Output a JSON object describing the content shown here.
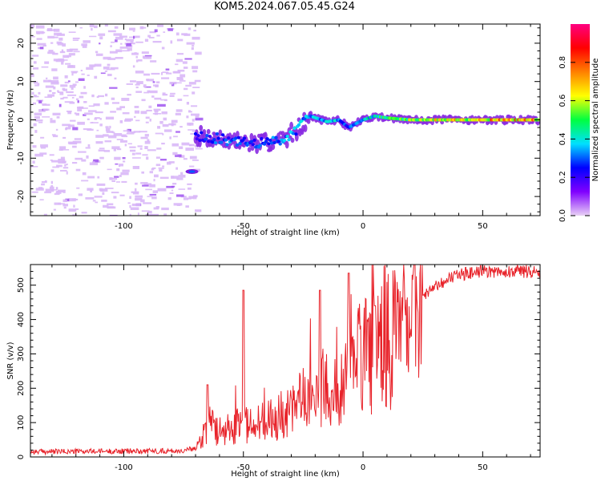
{
  "title": "KOM5.2024.067.05.45.G24",
  "chart_data": [
    {
      "type": "heatmap",
      "name": "spectrogram",
      "xlabel": "Height of straight line (km)",
      "ylabel": "Frequency (Hz)",
      "xlim": [
        -139,
        74
      ],
      "ylim": [
        -25,
        25
      ],
      "xticks": [
        -100,
        -50,
        0,
        50
      ],
      "yticks": [
        -20,
        -10,
        0,
        10,
        20
      ],
      "colorbar": {
        "label": "Normalized spectral amplitude",
        "range": [
          0,
          1
        ],
        "ticks": [
          0.0,
          0.2,
          0.4,
          0.6,
          0.8
        ],
        "colors": [
          "#e9d2f5",
          "#8000ff",
          "#0000ff",
          "#00e0ff",
          "#00ff40",
          "#ffff00",
          "#ff8000",
          "#ff0000",
          "#ff0080"
        ]
      },
      "signal_trace": {
        "x": [
          -70,
          -60,
          -50,
          -40,
          -33,
          -27,
          -22,
          -15,
          -10,
          -6,
          -3,
          0,
          5,
          10,
          20,
          40,
          60,
          74
        ],
        "frequency": [
          -4,
          -5,
          -6,
          -6,
          -5,
          -2,
          1,
          -0.5,
          0,
          -2,
          -1,
          0,
          1,
          0.5,
          0,
          0,
          0,
          0
        ],
        "amplitude": [
          0.25,
          0.3,
          0.3,
          0.3,
          0.35,
          0.35,
          0.35,
          0.4,
          0.35,
          0.3,
          0.35,
          0.4,
          0.45,
          0.5,
          0.6,
          0.7,
          0.75,
          0.7
        ]
      },
      "noise_region": {
        "x_range": [
          -139,
          -70
        ],
        "amplitude": 0.05
      }
    },
    {
      "type": "line",
      "name": "snr",
      "xlabel": "Height of straight line (km)",
      "ylabel": "SNR (v/v)",
      "xlim": [
        -139,
        74
      ],
      "ylim": [
        0,
        560
      ],
      "xticks": [
        -100,
        -50,
        0,
        50
      ],
      "yticks": [
        0,
        100,
        200,
        300,
        400,
        500
      ],
      "color": "#e8232a",
      "envelope": {
        "x": [
          -139,
          -75,
          -70,
          -65,
          -60,
          -50,
          -40,
          -30,
          -20,
          -10,
          0,
          10,
          20,
          30,
          40,
          50,
          74
        ],
        "y": [
          15,
          18,
          25,
          110,
          90,
          110,
          120,
          160,
          210,
          260,
          330,
          380,
          440,
          500,
          530,
          540,
          540
        ]
      },
      "peaks": [
        {
          "x": -65,
          "y": 210
        },
        {
          "x": -50,
          "y": 485
        },
        {
          "x": -18,
          "y": 485
        },
        {
          "x": -6,
          "y": 535
        },
        {
          "x": 5,
          "y": 440
        }
      ]
    }
  ]
}
